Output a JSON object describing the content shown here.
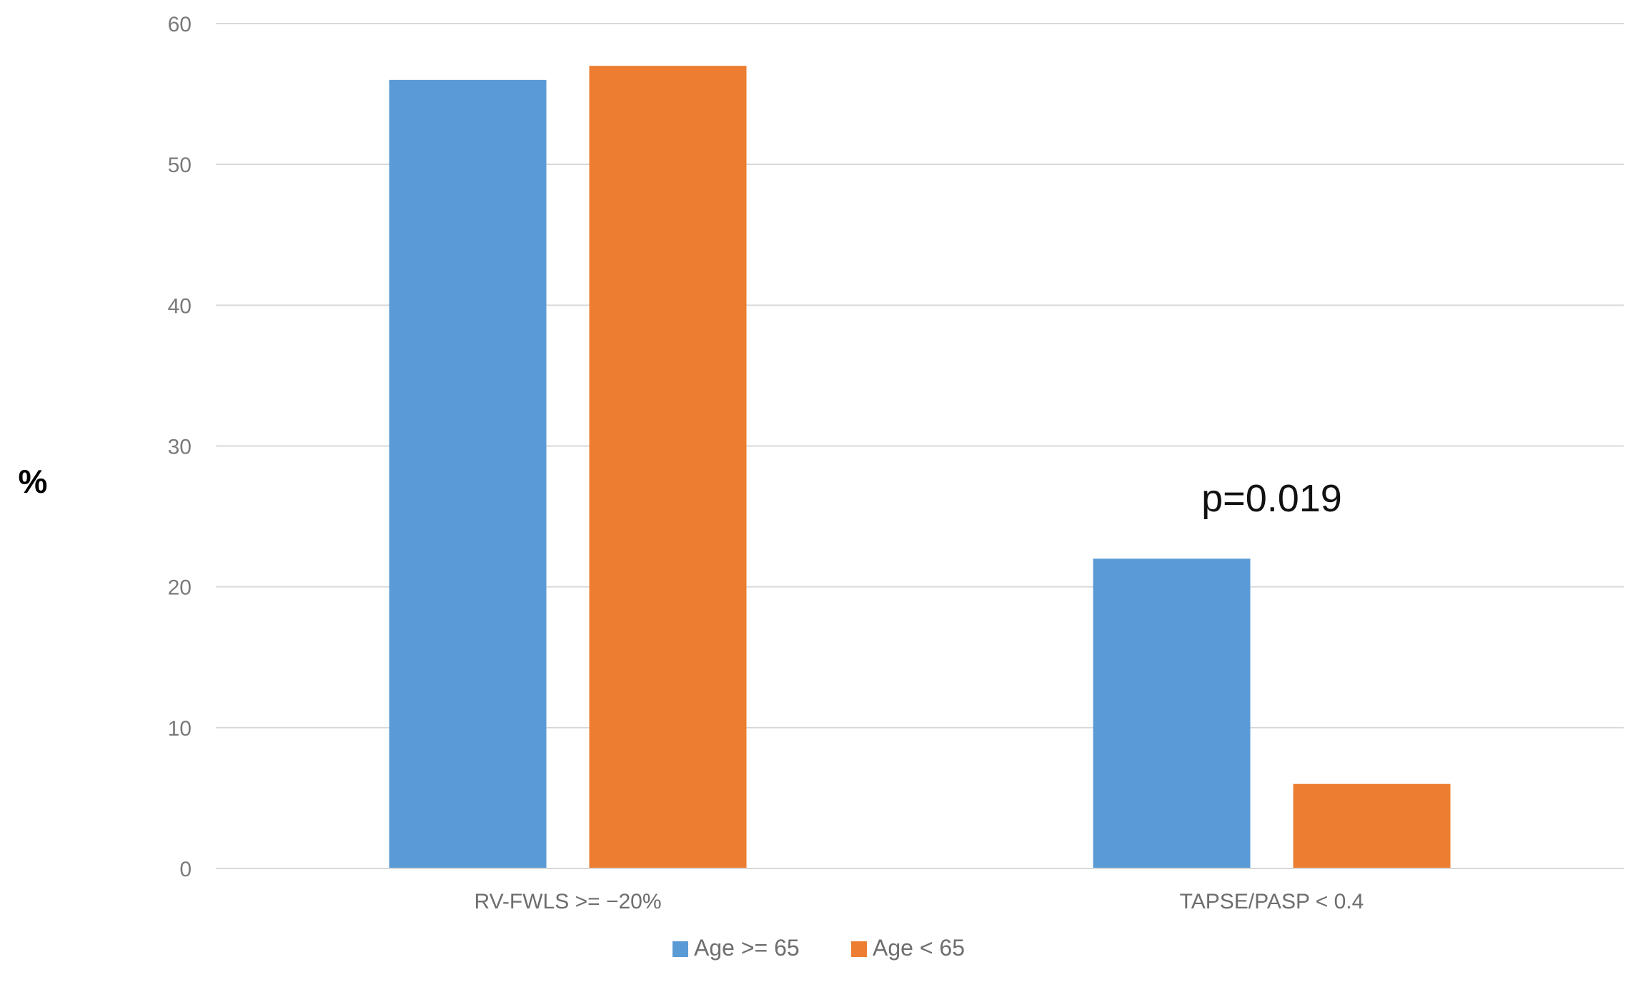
{
  "chart_data": {
    "type": "bar",
    "title": "",
    "xlabel": "",
    "ylabel": "%",
    "ylim": [
      0,
      60
    ],
    "yticks": [
      0,
      10,
      20,
      30,
      40,
      50,
      60
    ],
    "grid": true,
    "legend_position": "bottom",
    "categories": [
      "RV-FWLS >= −20%",
      "TAPSE/PASP < 0.4"
    ],
    "series": [
      {
        "name": "Age >= 65",
        "color": "#5b9bd5",
        "values": [
          56,
          22
        ]
      },
      {
        "name": "Age < 65",
        "color": "#ed7d31",
        "values": [
          57,
          6
        ]
      }
    ],
    "annotations": [
      {
        "text": "p=0.019",
        "category": "TAPSE/PASP < 0.4"
      }
    ]
  }
}
